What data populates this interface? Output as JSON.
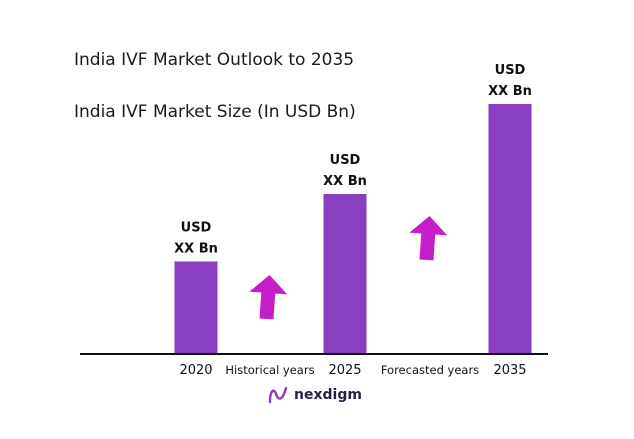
{
  "title": "India IVF Market Outlook to 2035",
  "subtitle": "India IVF Market Size (In USD Bn)",
  "colors": {
    "bar": "#8a3fc0",
    "arrow": "#c51dc8",
    "axis": "#111111"
  },
  "annotations": {
    "historical": "Historical years",
    "forecasted": "Forecasted years"
  },
  "brand": {
    "name": "nexdigm"
  },
  "chart_data": {
    "type": "bar",
    "title": "India IVF Market Outlook to 2035",
    "subtitle": "India IVF Market Size (In USD Bn)",
    "categories": [
      "2020",
      "2025",
      "2035"
    ],
    "values": [
      0.37,
      0.64,
      1.0
    ],
    "value_note": "relative bar heights; actual values masked",
    "data_labels": [
      [
        "USD",
        "XX Bn"
      ],
      [
        "USD",
        "XX Bn"
      ],
      [
        "USD",
        "XX Bn"
      ]
    ],
    "xlabel": "",
    "ylabel": "",
    "ylim": [
      0,
      1
    ],
    "grid": false,
    "legend": "none"
  }
}
